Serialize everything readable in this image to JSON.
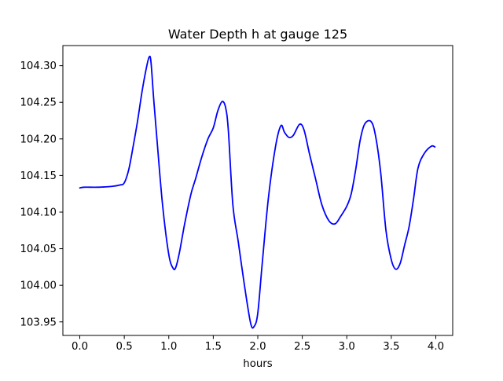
{
  "chart_data": {
    "type": "line",
    "title": "Water Depth h at gauge 125",
    "xlabel": "hours",
    "ylabel": "",
    "xlim": [
      -0.19,
      4.19
    ],
    "ylim": [
      103.9315,
      104.3275
    ],
    "xticks": [
      0.0,
      0.5,
      1.0,
      1.5,
      2.0,
      2.5,
      3.0,
      3.5,
      4.0
    ],
    "xtick_labels": [
      "0.0",
      "0.5",
      "1.0",
      "1.5",
      "2.0",
      "2.5",
      "3.0",
      "3.5",
      "4.0"
    ],
    "yticks": [
      103.95,
      104.0,
      104.05,
      104.1,
      104.15,
      104.2,
      104.25,
      104.3
    ],
    "ytick_labels": [
      "103.95",
      "104.00",
      "104.05",
      "104.10",
      "104.15",
      "104.20",
      "104.25",
      "104.30"
    ],
    "grid": false,
    "color": "#0000ff",
    "series": [
      {
        "x": [
          0.0,
          0.05,
          0.2,
          0.35,
          0.45,
          0.5,
          0.55,
          0.6,
          0.65,
          0.7,
          0.75,
          0.78,
          0.8,
          0.83,
          0.87,
          0.93,
          1.0,
          1.05,
          1.08,
          1.12,
          1.18,
          1.25,
          1.3,
          1.37,
          1.44,
          1.5,
          1.55,
          1.6,
          1.64,
          1.67,
          1.72,
          1.78,
          1.85,
          1.92,
          1.96,
          2.0,
          2.05,
          2.12,
          2.2,
          2.26,
          2.3,
          2.35,
          2.4,
          2.47,
          2.52,
          2.58,
          2.65,
          2.72,
          2.8,
          2.87,
          2.93,
          3.0,
          3.05,
          3.1,
          3.15,
          3.2,
          3.27,
          3.32,
          3.38,
          3.44,
          3.5,
          3.55,
          3.6,
          3.65,
          3.7,
          3.75,
          3.8,
          3.87,
          3.95,
          3.99
        ],
        "y": [
          104.133,
          104.134,
          104.134,
          104.135,
          104.137,
          104.14,
          104.158,
          104.19,
          104.225,
          104.265,
          104.298,
          104.312,
          104.305,
          104.255,
          104.195,
          104.11,
          104.042,
          104.023,
          104.025,
          104.045,
          104.085,
          104.125,
          104.145,
          104.175,
          104.2,
          104.215,
          104.238,
          104.251,
          104.242,
          104.21,
          104.11,
          104.06,
          104.0,
          103.948,
          103.944,
          103.962,
          104.03,
          104.12,
          104.19,
          104.218,
          104.209,
          104.202,
          104.205,
          104.22,
          104.212,
          104.18,
          104.145,
          104.11,
          104.088,
          104.084,
          104.094,
          104.108,
          104.125,
          104.158,
          104.198,
          104.22,
          104.224,
          104.206,
          104.155,
          104.075,
          104.035,
          104.022,
          104.03,
          104.055,
          104.08,
          104.118,
          104.16,
          104.18,
          104.19,
          104.189
        ]
      }
    ]
  }
}
